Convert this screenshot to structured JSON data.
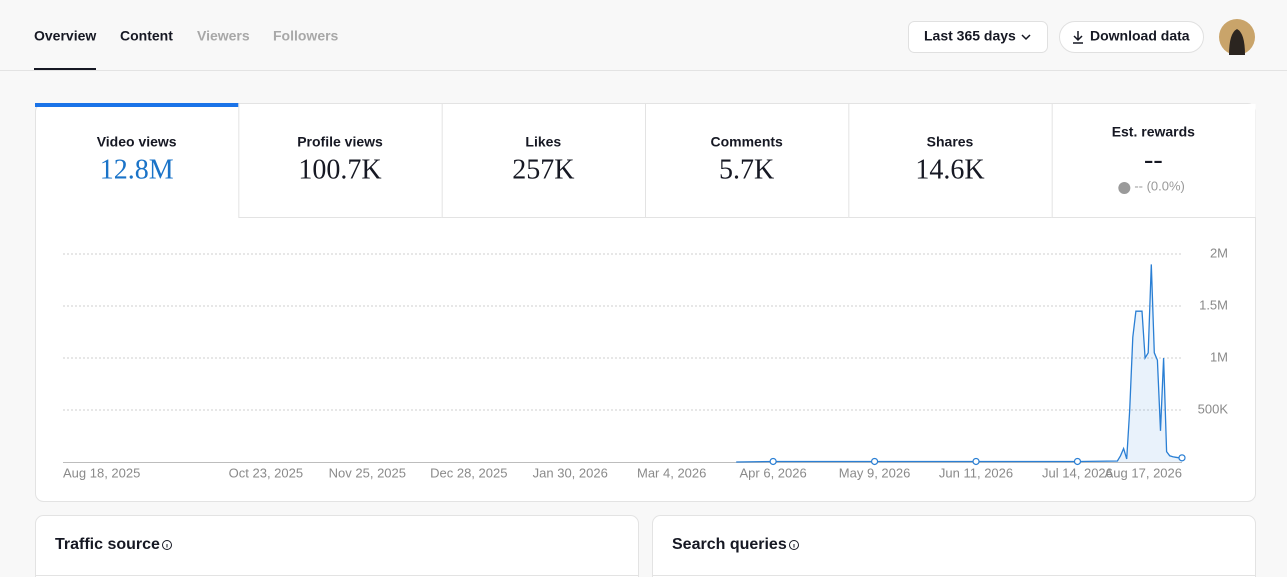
{
  "tabs": [
    "Overview",
    "Content",
    "Viewers",
    "Followers"
  ],
  "range_button": "Last 365 days",
  "download_button": "Download data",
  "metrics": [
    {
      "label": "Video views",
      "value": "12.8M"
    },
    {
      "label": "Profile views",
      "value": "100.7K"
    },
    {
      "label": "Likes",
      "value": "257K"
    },
    {
      "label": "Comments",
      "value": "5.7K"
    },
    {
      "label": "Shares",
      "value": "14.6K"
    },
    {
      "label": "Est. rewards",
      "value": "--",
      "change": "-- (0.0%)"
    }
  ],
  "chart_data": {
    "type": "line",
    "color": "#2a7fd4",
    "grid": true,
    "x": [
      "2026-03-25",
      "2026-04-06",
      "2026-05-09",
      "2026-06-11",
      "2026-07-14",
      "2026-07-27",
      "2026-07-28",
      "2026-07-29",
      "2026-07-30",
      "2026-07-31",
      "2026-08-01",
      "2026-08-02",
      "2026-08-03",
      "2026-08-04",
      "2026-08-05",
      "2026-08-06",
      "2026-08-07",
      "2026-08-08",
      "2026-08-09",
      "2026-08-10",
      "2026-08-11",
      "2026-08-12",
      "2026-08-13",
      "2026-08-14",
      "2026-08-15",
      "2026-08-16",
      "2026-08-17"
    ],
    "values": [
      0,
      5000,
      5000,
      5000,
      5000,
      10000,
      60000,
      130000,
      30000,
      500000,
      1200000,
      1450000,
      1450000,
      1450000,
      1000000,
      1050000,
      1900000,
      1050000,
      980000,
      300000,
      1000000,
      100000,
      60000,
      50000,
      45000,
      40000,
      40000
    ],
    "xlim": [
      "2025-08-18",
      "2026-08-17"
    ],
    "xticks": [
      {
        "value": "2025-08-18",
        "label": "Aug 18, 2025"
      },
      {
        "value": "2025-10-23",
        "label": "Oct 23, 2025"
      },
      {
        "value": "2025-11-25",
        "label": "Nov 25, 2025"
      },
      {
        "value": "2025-12-28",
        "label": "Dec 28, 2025"
      },
      {
        "value": "2026-01-30",
        "label": "Jan 30, 2026"
      },
      {
        "value": "2026-03-04",
        "label": "Mar 4, 2026"
      },
      {
        "value": "2026-04-06",
        "label": "Apr 6, 2026"
      },
      {
        "value": "2026-05-09",
        "label": "May 9, 2026"
      },
      {
        "value": "2026-06-11",
        "label": "Jun 11, 2026"
      },
      {
        "value": "2026-07-14",
        "label": "Jul 14, 2026"
      },
      {
        "value": "2026-08-17",
        "label": "Aug 17, 2026"
      }
    ],
    "ylim": [
      0,
      2000000
    ],
    "yticks": [
      {
        "value": 500000,
        "label": "500K"
      },
      {
        "value": 1000000,
        "label": "1M"
      },
      {
        "value": 1500000,
        "label": "1.5M"
      },
      {
        "value": 2000000,
        "label": "2M"
      }
    ]
  },
  "panels": [
    "Traffic source",
    "Search queries"
  ]
}
